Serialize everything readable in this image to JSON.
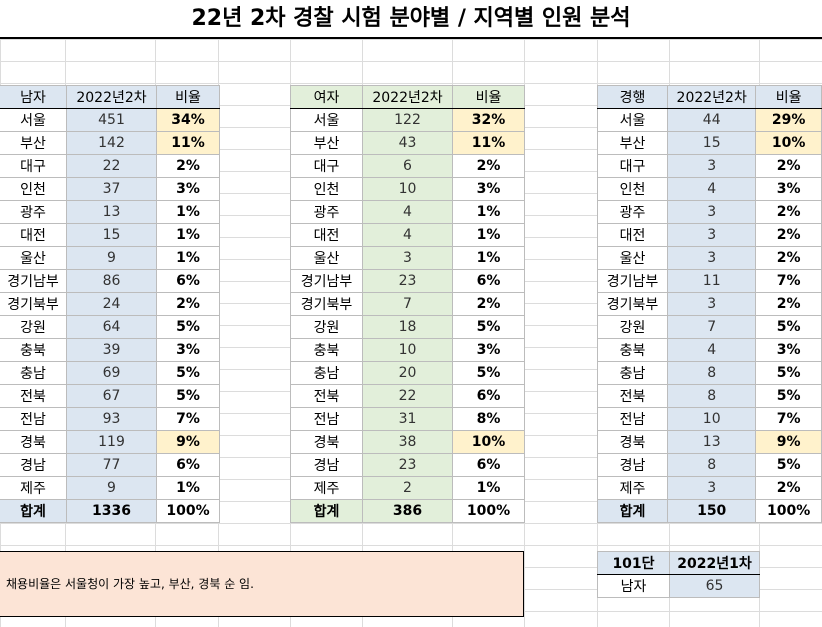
{
  "title": "22년 2차 경찰 시험 분야별 / 지역별 인원 분석",
  "colors": {
    "blue_header": "#dce6f1",
    "green_header": "#e2efda",
    "highlight": "#fff2cc",
    "note_bg": "#fce4d6"
  },
  "tables": [
    {
      "id": "male",
      "headers": [
        "남자",
        "2022년2차",
        "비율"
      ],
      "rows": [
        [
          "서울",
          "451",
          "34%"
        ],
        [
          "부산",
          "142",
          "11%"
        ],
        [
          "대구",
          "22",
          "2%"
        ],
        [
          "인천",
          "37",
          "3%"
        ],
        [
          "광주",
          "13",
          "1%"
        ],
        [
          "대전",
          "15",
          "1%"
        ],
        [
          "울산",
          "9",
          "1%"
        ],
        [
          "경기남부",
          "86",
          "6%"
        ],
        [
          "경기북부",
          "24",
          "2%"
        ],
        [
          "강원",
          "64",
          "5%"
        ],
        [
          "충북",
          "39",
          "3%"
        ],
        [
          "충남",
          "69",
          "5%"
        ],
        [
          "전북",
          "67",
          "5%"
        ],
        [
          "전남",
          "93",
          "7%"
        ],
        [
          "경북",
          "119",
          "9%"
        ],
        [
          "경남",
          "77",
          "6%"
        ],
        [
          "제주",
          "9",
          "1%"
        ]
      ],
      "highlight_rows": [
        0,
        1,
        14
      ],
      "total": [
        "합계",
        "1336",
        "100%"
      ]
    },
    {
      "id": "female",
      "headers": [
        "여자",
        "2022년2차",
        "비율"
      ],
      "rows": [
        [
          "서울",
          "122",
          "32%"
        ],
        [
          "부산",
          "43",
          "11%"
        ],
        [
          "대구",
          "6",
          "2%"
        ],
        [
          "인천",
          "10",
          "3%"
        ],
        [
          "광주",
          "4",
          "1%"
        ],
        [
          "대전",
          "4",
          "1%"
        ],
        [
          "울산",
          "3",
          "1%"
        ],
        [
          "경기남부",
          "23",
          "6%"
        ],
        [
          "경기북부",
          "7",
          "2%"
        ],
        [
          "강원",
          "18",
          "5%"
        ],
        [
          "충북",
          "10",
          "3%"
        ],
        [
          "충남",
          "20",
          "5%"
        ],
        [
          "전북",
          "22",
          "6%"
        ],
        [
          "전남",
          "31",
          "8%"
        ],
        [
          "경북",
          "38",
          "10%"
        ],
        [
          "경남",
          "23",
          "6%"
        ],
        [
          "제주",
          "2",
          "1%"
        ]
      ],
      "highlight_rows": [
        0,
        1,
        14
      ],
      "total": [
        "합계",
        "386",
        "100%"
      ]
    },
    {
      "id": "admin",
      "headers": [
        "경행",
        "2022년2차",
        "비율"
      ],
      "rows": [
        [
          "서울",
          "44",
          "29%"
        ],
        [
          "부산",
          "15",
          "10%"
        ],
        [
          "대구",
          "3",
          "2%"
        ],
        [
          "인천",
          "4",
          "3%"
        ],
        [
          "광주",
          "3",
          "2%"
        ],
        [
          "대전",
          "3",
          "2%"
        ],
        [
          "울산",
          "3",
          "2%"
        ],
        [
          "경기남부",
          "11",
          "7%"
        ],
        [
          "경기북부",
          "3",
          "2%"
        ],
        [
          "강원",
          "7",
          "5%"
        ],
        [
          "충북",
          "4",
          "3%"
        ],
        [
          "충남",
          "8",
          "5%"
        ],
        [
          "전북",
          "8",
          "5%"
        ],
        [
          "전남",
          "10",
          "7%"
        ],
        [
          "경북",
          "13",
          "9%"
        ],
        [
          "경남",
          "8",
          "5%"
        ],
        [
          "제주",
          "3",
          "2%"
        ]
      ],
      "highlight_rows": [
        0,
        1,
        14
      ],
      "total": [
        "합계",
        "150",
        "100%"
      ]
    }
  ],
  "small_table": {
    "headers": [
      "101단",
      "2022년1차"
    ],
    "row": [
      "남자",
      "65"
    ]
  },
  "note": "채용비율은 서울청이 가장 높고, 부산, 경북 순 임."
}
